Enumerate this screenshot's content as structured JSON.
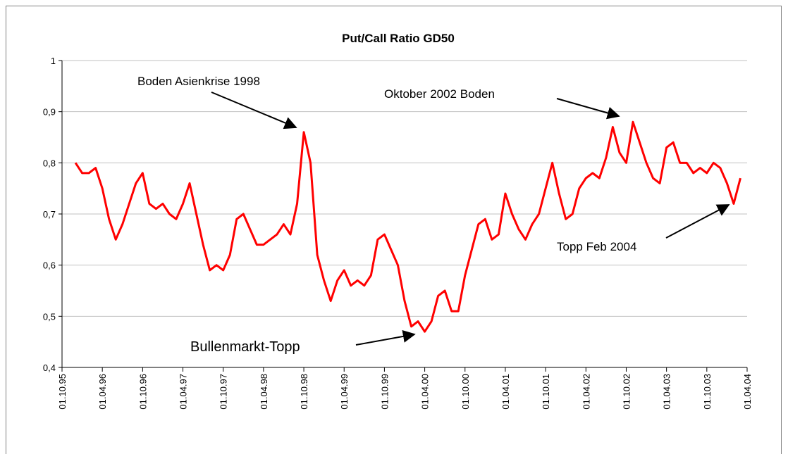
{
  "chart_data": {
    "type": "line",
    "title": "Put/Call Ratio GD50",
    "x": [
      "01.12.95",
      "01.01.96",
      "01.02.96",
      "01.03.96",
      "01.04.96",
      "01.05.96",
      "01.06.96",
      "01.07.96",
      "01.08.96",
      "01.09.96",
      "01.10.96",
      "01.11.96",
      "01.12.96",
      "01.01.97",
      "01.02.97",
      "01.03.97",
      "01.04.97",
      "01.05.97",
      "01.06.97",
      "01.07.97",
      "01.08.97",
      "01.09.97",
      "01.10.97",
      "01.11.97",
      "01.12.97",
      "01.01.98",
      "01.02.98",
      "01.03.98",
      "01.04.98",
      "01.05.98",
      "01.06.98",
      "01.07.98",
      "01.08.98",
      "01.09.98",
      "01.10.98",
      "01.11.98",
      "01.12.98",
      "01.01.99",
      "01.02.99",
      "01.03.99",
      "01.04.99",
      "01.05.99",
      "01.06.99",
      "01.07.99",
      "01.08.99",
      "01.09.99",
      "01.10.99",
      "01.11.99",
      "01.12.99",
      "01.01.00",
      "01.02.00",
      "01.03.00",
      "01.04.00",
      "01.05.00",
      "01.06.00",
      "01.07.00",
      "01.08.00",
      "01.09.00",
      "01.10.00",
      "01.11.00",
      "01.12.00",
      "01.01.01",
      "01.02.01",
      "01.03.01",
      "01.04.01",
      "01.05.01",
      "01.06.01",
      "01.07.01",
      "01.08.01",
      "01.09.01",
      "01.10.01",
      "01.11.01",
      "01.12.01",
      "01.01.02",
      "01.02.02",
      "01.03.02",
      "01.04.02",
      "01.05.02",
      "01.06.02",
      "01.07.02",
      "01.08.02",
      "01.09.02",
      "01.10.02",
      "01.11.02",
      "01.12.02",
      "01.01.03",
      "01.02.03",
      "01.03.03",
      "01.04.03",
      "01.05.03",
      "01.06.03",
      "01.07.03",
      "01.08.03",
      "01.09.03",
      "01.10.03",
      "01.11.03",
      "01.12.03",
      "01.01.04",
      "01.02.04",
      "01.03.04"
    ],
    "series": [
      {
        "color": "#ff0000",
        "values": [
          0.8,
          0.78,
          0.78,
          0.79,
          0.75,
          0.69,
          0.65,
          0.68,
          0.72,
          0.76,
          0.78,
          0.72,
          0.71,
          0.72,
          0.7,
          0.69,
          0.72,
          0.76,
          0.7,
          0.64,
          0.59,
          0.6,
          0.59,
          0.62,
          0.69,
          0.7,
          0.67,
          0.64,
          0.64,
          0.65,
          0.66,
          0.68,
          0.66,
          0.72,
          0.86,
          0.8,
          0.62,
          0.57,
          0.53,
          0.57,
          0.59,
          0.56,
          0.57,
          0.56,
          0.58,
          0.65,
          0.66,
          0.63,
          0.6,
          0.53,
          0.48,
          0.49,
          0.47,
          0.49,
          0.54,
          0.55,
          0.51,
          0.51,
          0.58,
          0.63,
          0.68,
          0.69,
          0.65,
          0.66,
          0.74,
          0.7,
          0.67,
          0.65,
          0.68,
          0.7,
          0.75,
          0.8,
          0.74,
          0.69,
          0.7,
          0.75,
          0.77,
          0.78,
          0.77,
          0.81,
          0.87,
          0.82,
          0.8,
          0.88,
          0.84,
          0.8,
          0.77,
          0.76,
          0.83,
          0.84,
          0.8,
          0.8,
          0.78,
          0.79,
          0.78,
          0.8,
          0.79,
          0.76,
          0.72,
          0.77
        ]
      }
    ],
    "xlim": [
      "01.10.95",
      "01.04.04"
    ],
    "xticks": [
      "01.10.95",
      "01.04.96",
      "01.10.96",
      "01.04.97",
      "01.10.97",
      "01.04.98",
      "01.10.98",
      "01.04.99",
      "01.10.99",
      "01.04.00",
      "01.10.00",
      "01.04.01",
      "01.10.01",
      "01.04.02",
      "01.10.02",
      "01.04.03",
      "01.10.03",
      "01.04.04"
    ],
    "ylim": [
      0.4,
      1
    ],
    "yticks": [
      {
        "value": 0.4,
        "label": "0,4"
      },
      {
        "value": 0.5,
        "label": "0,5"
      },
      {
        "value": 0.6,
        "label": "0,6"
      },
      {
        "value": 0.7,
        "label": "0,7"
      },
      {
        "value": 0.8,
        "label": "0,8"
      },
      {
        "value": 0.9,
        "label": "0,9"
      },
      1
    ],
    "grid": true,
    "annotations": [
      "Boden Asienkrise 1998",
      "Oktober 2002 Boden",
      "Topp Feb 2004",
      "Bullenmarkt-Topp"
    ]
  }
}
